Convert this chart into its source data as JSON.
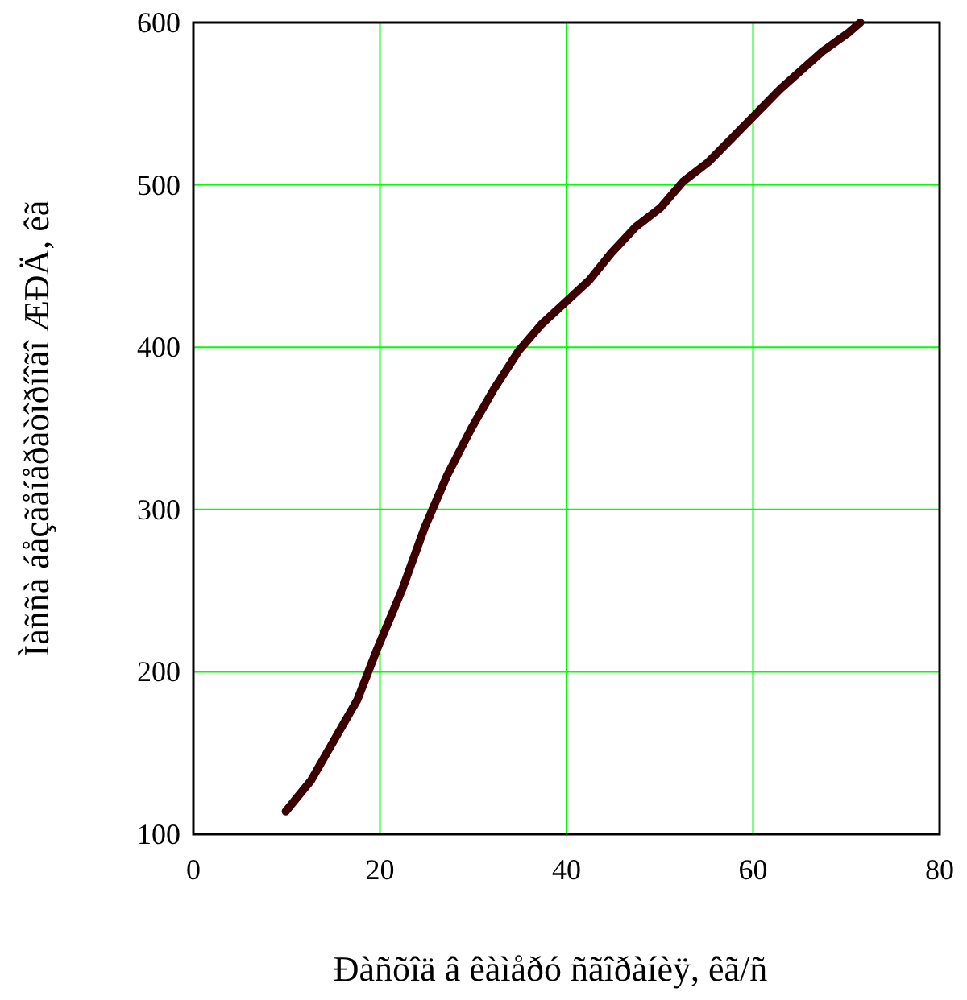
{
  "chart_data": {
    "type": "line",
    "xlabel": "Ðàñõîä â êàìåðó ñãîðàíèÿ, êã/ñ",
    "ylabel": "Ìàññà áåçãåíåðàòîðíîãî ÆÐÄ, êã",
    "xlim": [
      0,
      80
    ],
    "ylim": [
      100,
      600
    ],
    "xticks": [
      0,
      20,
      40,
      60,
      80
    ],
    "yticks": [
      100,
      200,
      300,
      400,
      500,
      600
    ],
    "grid": true,
    "series": [
      {
        "color": "#3c0000",
        "x": [
          9.9,
          12.6,
          15.2,
          17.6,
          19.7,
          22.4,
          24.8,
          27.2,
          29.8,
          32.2,
          34.9,
          37.3,
          42.4,
          44.8,
          47.4,
          50.1,
          52.5,
          55.2,
          57.6,
          60,
          62.9,
          67.4,
          70.3,
          71.5
        ],
        "values": [
          114,
          133,
          159,
          183,
          214,
          251,
          289,
          321,
          350,
          374,
          398,
          414,
          441,
          458,
          474,
          486,
          502,
          514,
          528,
          542,
          559,
          582,
          594,
          600
        ]
      }
    ]
  }
}
